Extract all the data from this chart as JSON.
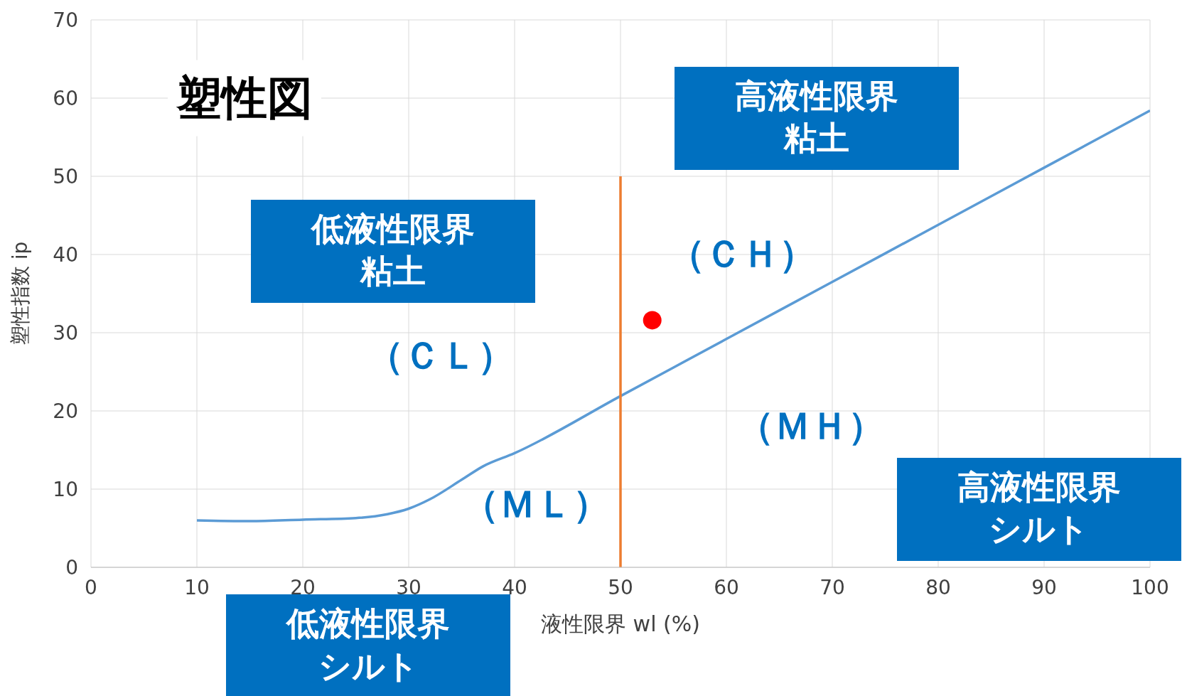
{
  "chart_data": {
    "type": "line",
    "title": "塑性図",
    "xlabel": "液性限界 wl (%)",
    "ylabel": "塑性指数 ip",
    "xlim": [
      0,
      100
    ],
    "xticks": [
      0,
      10,
      20,
      30,
      40,
      50,
      60,
      70,
      80,
      90,
      100
    ],
    "ylim": [
      0,
      70
    ],
    "yticks": [
      0,
      10,
      20,
      30,
      40,
      50,
      60,
      70
    ],
    "grid": true,
    "series": [
      {
        "color": "#5b9bd5",
        "x": [
          10,
          15,
          20,
          25,
          28,
          30,
          32,
          35,
          37,
          40,
          50,
          60,
          70,
          80,
          90,
          100
        ],
        "values": [
          6.0,
          5.9,
          6.1,
          6.3,
          6.8,
          7.5,
          8.7,
          11.2,
          12.9,
          14.6,
          21.9,
          29.2,
          36.5,
          43.8,
          51.1,
          58.4
        ]
      },
      {
        "color": "#ed7d31",
        "x": [
          50,
          50
        ],
        "values": [
          0,
          50
        ]
      },
      {
        "type": "scatter",
        "color": "#ff0000",
        "x": [
          53
        ],
        "values": [
          31.6
        ]
      }
    ],
    "annotations": [
      "高液性限界粘土",
      "低液性限界粘土",
      "低液性限界シルト",
      "高液性限界シルト",
      "（ＣＨ）",
      "（ＣＬ）",
      "（ＭＨ）",
      "（ＭＬ）"
    ]
  }
}
